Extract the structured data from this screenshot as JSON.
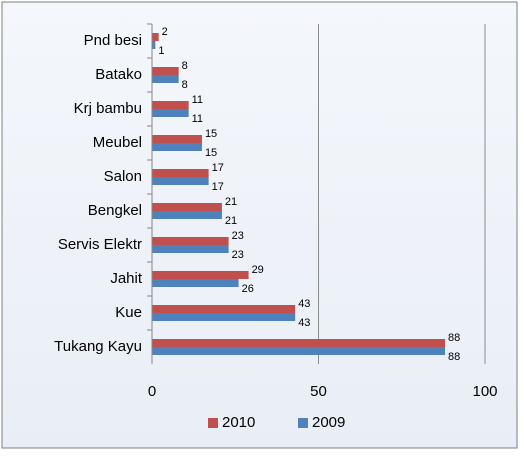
{
  "chart_data": {
    "type": "bar",
    "orientation": "horizontal",
    "categories": [
      "Pnd besi",
      "Batako",
      "Krj bambu",
      "Meubel",
      "Salon",
      "Bengkel",
      "Servis Elektr",
      "Jahit",
      "Kue",
      "Tukang Kayu"
    ],
    "series": [
      {
        "name": "2010",
        "color": "#c0504d",
        "values": [
          2,
          8,
          11,
          15,
          17,
          21,
          23,
          29,
          43,
          88
        ]
      },
      {
        "name": "2009",
        "color": "#4f81bd",
        "values": [
          1,
          8,
          11,
          15,
          17,
          21,
          23,
          26,
          43,
          88
        ]
      }
    ],
    "xlim": [
      0,
      100
    ],
    "xticks": [
      0,
      50,
      100
    ],
    "grid": true,
    "legend": "bottom"
  }
}
